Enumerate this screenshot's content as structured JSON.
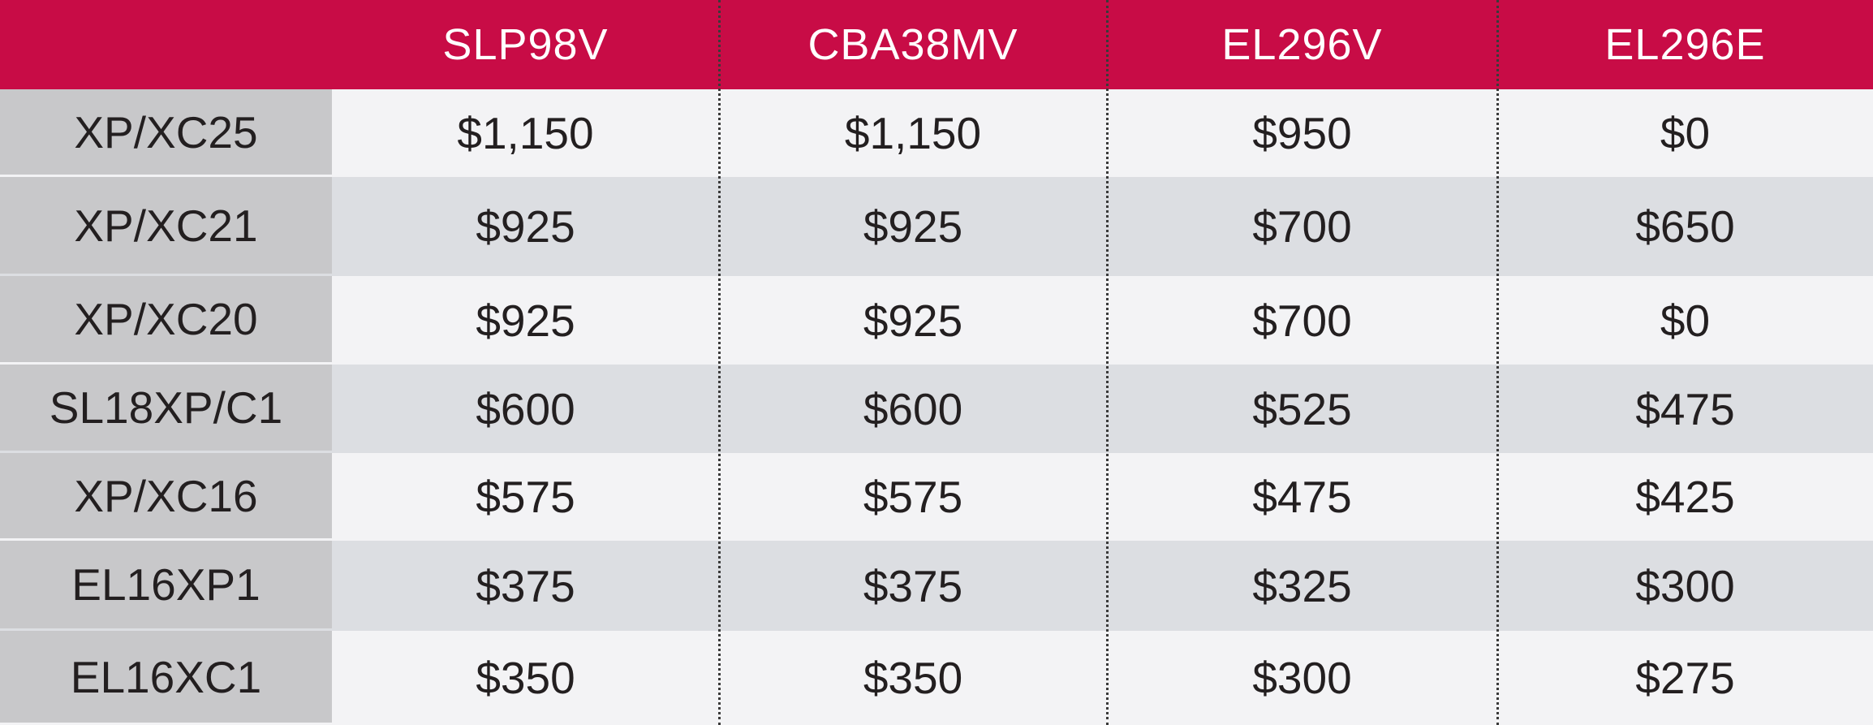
{
  "colors": {
    "header_bg": "#c80c46",
    "header_text": "#ffffff",
    "label_bg": "#c8c8ca",
    "row_light": "#f3f3f5",
    "row_dark": "#dcdee2",
    "cell_text": "#231f20"
  },
  "chart_data": {
    "type": "table",
    "corner_label": "",
    "columns": [
      "SLP98V",
      "CBA38MV",
      "EL296V",
      "EL296E"
    ],
    "rows": [
      {
        "label": "XP/XC25",
        "values": [
          "$1,150",
          "$1,150",
          "$950",
          "$0"
        ]
      },
      {
        "label": "XP/XC21",
        "values": [
          "$925",
          "$925",
          "$700",
          "$650"
        ]
      },
      {
        "label": "XP/XC20",
        "values": [
          "$925",
          "$925",
          "$700",
          "$0"
        ]
      },
      {
        "label": "SL18XP/C1",
        "values": [
          "$600",
          "$600",
          "$525",
          "$475"
        ]
      },
      {
        "label": "XP/XC16",
        "values": [
          "$575",
          "$575",
          "$475",
          "$425"
        ]
      },
      {
        "label": "EL16XP1",
        "values": [
          "$375",
          "$375",
          "$325",
          "$300"
        ]
      },
      {
        "label": "EL16XC1",
        "values": [
          "$350",
          "$350",
          "$300",
          "$275"
        ]
      }
    ]
  }
}
